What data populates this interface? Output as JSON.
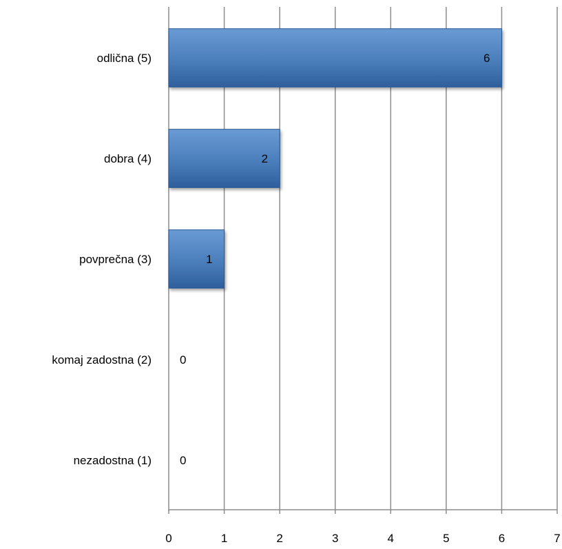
{
  "chart_data": {
    "type": "bar",
    "orientation": "horizontal",
    "categories": [
      "nezadostna (1)",
      "komaj zadostna (2)",
      "povprečna (3)",
      "dobra (4)",
      "odlična (5)"
    ],
    "values": [
      0,
      0,
      1,
      2,
      6
    ],
    "data_labels": [
      "0",
      "0",
      "1",
      "2",
      "6"
    ],
    "x_ticks": [
      "0",
      "1",
      "2",
      "3",
      "4",
      "5",
      "6",
      "7"
    ],
    "xlim": [
      0,
      7
    ],
    "grid": "vertical",
    "legend": "none",
    "colors": {
      "bar": "#4a7ebb",
      "bar_light": "#6a9ad4",
      "bar_dark": "#2e5f9c",
      "grid": "#8c8c8c"
    }
  }
}
